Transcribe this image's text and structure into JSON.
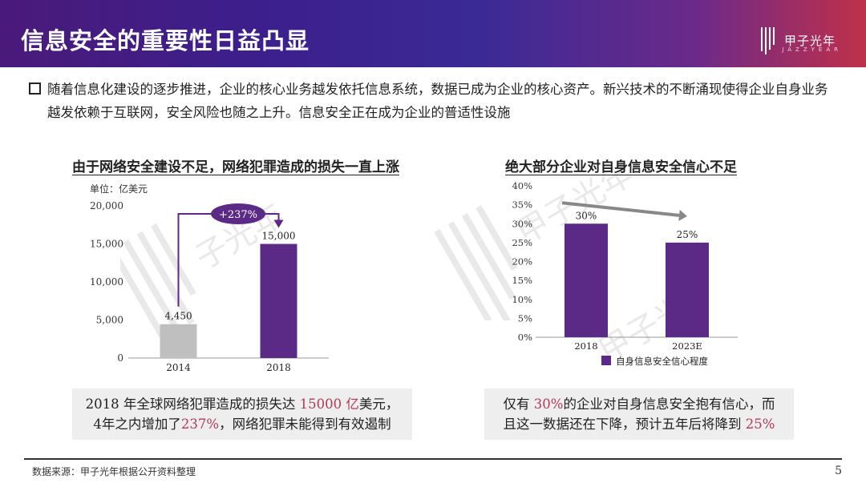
{
  "header": {
    "title": "信息安全的重要性日益凸显"
  },
  "brand": {
    "name": "甲子光年",
    "sub": "JAZZYEAR"
  },
  "intro": "随着信息化建设的逐步推进，企业的核心业务越发依托信息系统，数据已成为企业的核心资产。新兴技术的不断涌现使得企业自身业务越发依赖于互联网，安全风险也随之上升。信息安全正在成为企业的普适性设施",
  "left": {
    "title": "由于网络安全建设不足，网络犯罪造成的损失一直上涨",
    "callout": {
      "p1": "2018 年全球网络犯罪造成的损失达 ",
      "h1": "15000 亿",
      "p2": "美元，",
      "p3": "4年之内增加了",
      "h2": "237%",
      "p4": "，网络犯罪未能得到有效遏制"
    }
  },
  "right": {
    "title": "绝大部分企业对自身信息安全信心不足",
    "callout": {
      "p1": "仅有 ",
      "h1": "30%",
      "p2": "的企业对自身信息安全抱有信心，而",
      "p3": "且这一数据还在下降，预计五年后将降到 ",
      "h2": "25%"
    }
  },
  "chart_data": [
    {
      "type": "bar",
      "unit_label": "单位：亿美元",
      "categories": [
        "2014",
        "2018"
      ],
      "values": [
        4450,
        15000
      ],
      "value_labels": [
        "4,450",
        "15,000"
      ],
      "colors": [
        "#bfbfbf",
        "#5b2a86"
      ],
      "ylim": [
        0,
        20000
      ],
      "yticks": [
        "0",
        "5,000",
        "10,000",
        "15,000",
        "20,000"
      ],
      "annotation": "+237%"
    },
    {
      "type": "bar",
      "categories": [
        "2018",
        "2023E"
      ],
      "values": [
        30,
        25
      ],
      "value_labels": [
        "30%",
        "25%"
      ],
      "colors": [
        "#5b2a86",
        "#5b2a86"
      ],
      "ylim": [
        0,
        40
      ],
      "yticks": [
        "0%",
        "5%",
        "10%",
        "15%",
        "20%",
        "25%",
        "30%",
        "35%",
        "40%"
      ],
      "legend": "自身信息安全信心程度",
      "legend_position": "bottom"
    }
  ],
  "footer": {
    "source": "数据来源：甲子光年根据公开资料整理",
    "page": "5"
  }
}
